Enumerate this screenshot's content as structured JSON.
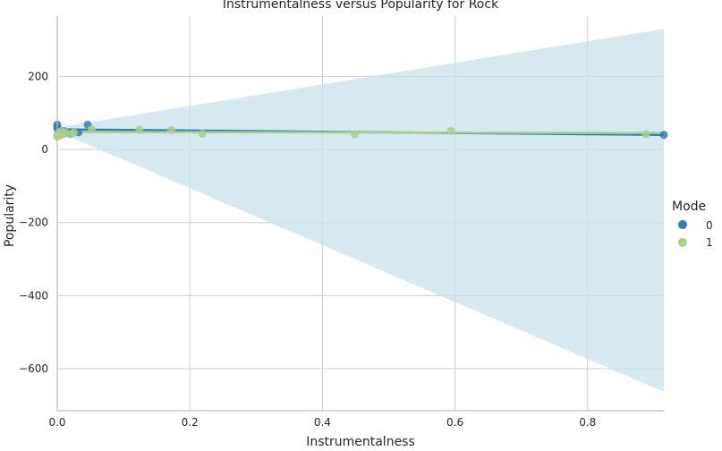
{
  "chart_data": {
    "type": "scatter",
    "title": "Instrumentalness versus Popularity for Rock",
    "xlabel": "Instrumentalness",
    "ylabel": "Popularity",
    "xlim": [
      0,
      0.915
    ],
    "ylim": [
      -715,
      365
    ],
    "xticks": [
      0.0,
      0.2,
      0.4,
      0.6,
      0.8
    ],
    "xtick_labels": [
      "0.0",
      "0.2",
      "0.4",
      "0.6",
      "0.8"
    ],
    "yticks": [
      -600,
      -400,
      -200,
      0,
      200
    ],
    "ytick_labels": [
      "−600",
      "−400",
      "−200",
      "0",
      "200"
    ],
    "grid": true,
    "legend": {
      "title": "Mode",
      "placement": "right"
    },
    "colors": {
      "mode0": "#2f7fb0",
      "mode1": "#a8cf8c",
      "ci_band": "#c8e1ec",
      "grid": "#cccccc"
    },
    "series": [
      {
        "name": "0",
        "points": [
          [
            0.0,
            68
          ],
          [
            0.0,
            60
          ],
          [
            0.001,
            55
          ],
          [
            0.002,
            50
          ],
          [
            0.003,
            45
          ],
          [
            0.004,
            52
          ],
          [
            0.005,
            48
          ],
          [
            0.007,
            42
          ],
          [
            0.01,
            50
          ],
          [
            0.015,
            46
          ],
          [
            0.02,
            44
          ],
          [
            0.032,
            47
          ],
          [
            0.046,
            68
          ],
          [
            0.915,
            40
          ]
        ],
        "fit": {
          "x": [
            0.0,
            0.915
          ],
          "y": [
            55,
            40
          ]
        },
        "ci": {
          "x": [
            0.0,
            0.915
          ],
          "upper": [
            60,
            330
          ],
          "lower": [
            50,
            -663
          ]
        }
      },
      {
        "name": "1",
        "points": [
          [
            0.0,
            40
          ],
          [
            0.0,
            35
          ],
          [
            0.002,
            45
          ],
          [
            0.004,
            38
          ],
          [
            0.006,
            50
          ],
          [
            0.008,
            43
          ],
          [
            0.012,
            47
          ],
          [
            0.02,
            42
          ],
          [
            0.025,
            46
          ],
          [
            0.052,
            55
          ],
          [
            0.124,
            54
          ],
          [
            0.172,
            53
          ],
          [
            0.219,
            43
          ],
          [
            0.449,
            42
          ],
          [
            0.594,
            51
          ],
          [
            0.888,
            42
          ]
        ],
        "fit": {
          "x": [
            0.0,
            0.915
          ],
          "y": [
            48,
            45
          ]
        }
      }
    ]
  }
}
